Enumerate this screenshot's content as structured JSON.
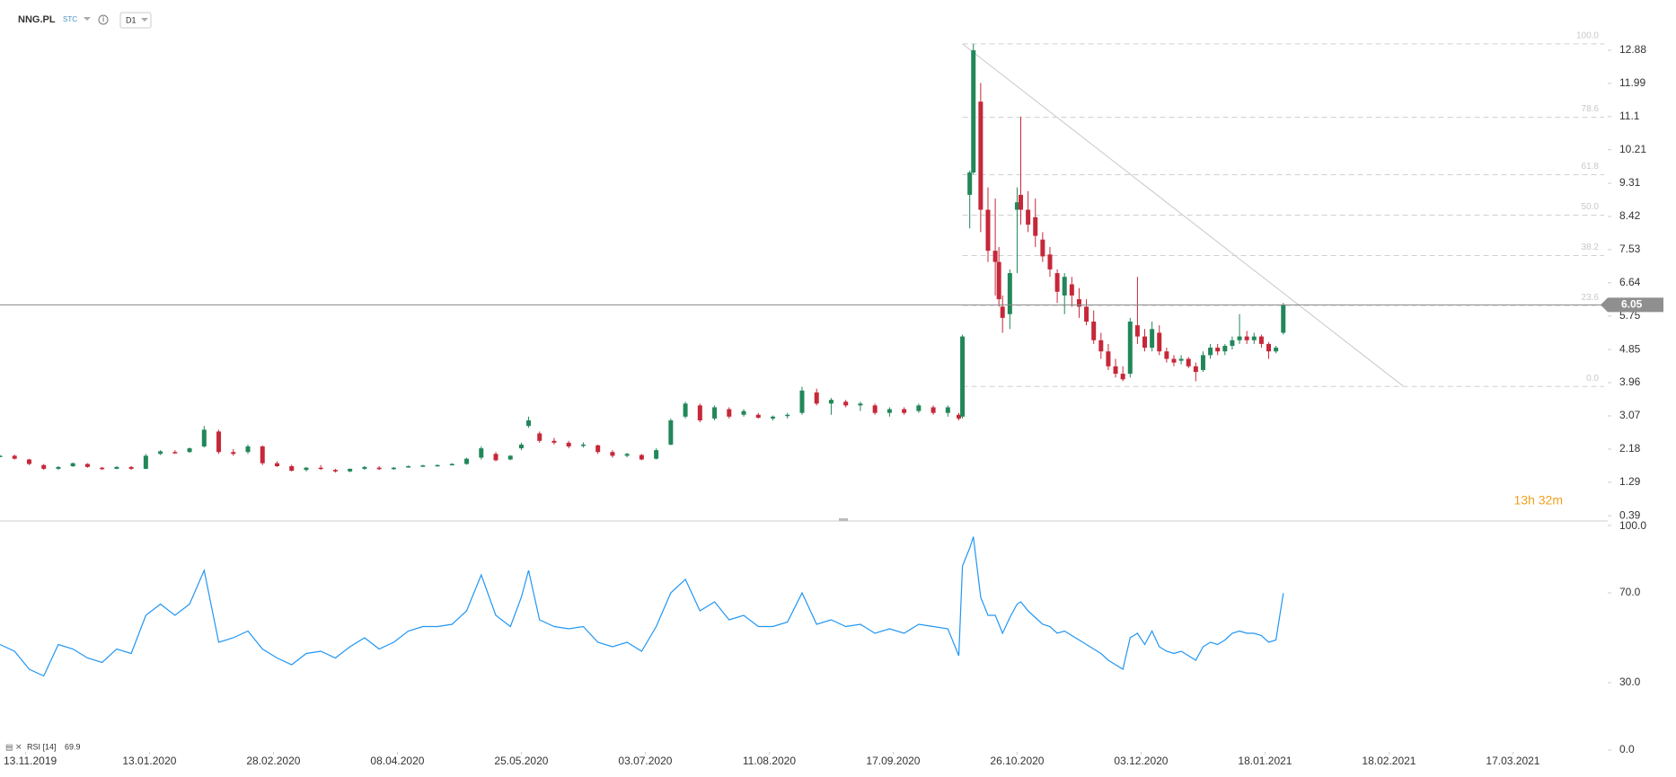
{
  "chart_data": {
    "type": "candlestick",
    "symbol": "NNG.PL",
    "exchange": "STC",
    "interval": "D1",
    "up_color": "#22875a",
    "down_color": "#c62839",
    "xlim": [
      0,
      441
    ],
    "ylim": [
      0.25,
      13.36
    ],
    "yticks": [
      12.88,
      11.99,
      11.1,
      10.21,
      9.31,
      8.42,
      7.53,
      6.64,
      5.75,
      4.85,
      3.96,
      3.07,
      2.18,
      1.29,
      0.39
    ],
    "xticks": [
      {
        "value": 7,
        "label": "13.11.2019"
      },
      {
        "value": 41,
        "label": "13.01.2020"
      },
      {
        "value": 75,
        "label": "28.02.2020"
      },
      {
        "value": 109,
        "label": "08.04.2020"
      },
      {
        "value": 143,
        "label": "25.05.2020"
      },
      {
        "value": 177,
        "label": "03.07.2020"
      },
      {
        "value": 211,
        "label": "11.08.2020"
      },
      {
        "value": 245,
        "label": "17.09.2020"
      },
      {
        "value": 279,
        "label": "26.10.2020"
      },
      {
        "value": 313,
        "label": "03.12.2020"
      },
      {
        "value": 347,
        "label": "18.01.2021"
      },
      {
        "value": 381,
        "label": "18.02.2021"
      },
      {
        "value": 415,
        "label": "17.03.2021"
      }
    ],
    "x": [
      0,
      4,
      8,
      12,
      16,
      20,
      24,
      28,
      32,
      36,
      40,
      44,
      48,
      52,
      56,
      60,
      64,
      68,
      72,
      76,
      80,
      84,
      88,
      92,
      96,
      100,
      104,
      108,
      112,
      116,
      120,
      124,
      128,
      132,
      136,
      140,
      143,
      145,
      148,
      152,
      156,
      160,
      164,
      168,
      172,
      176,
      180,
      184,
      188,
      192,
      196,
      200,
      204,
      208,
      212,
      216,
      220,
      224,
      228,
      232,
      236,
      240,
      244,
      248,
      252,
      256,
      260,
      263,
      264,
      266,
      267,
      269,
      271,
      273,
      274,
      275,
      277,
      279,
      280,
      282,
      284,
      286,
      288,
      290,
      292,
      294,
      296,
      298,
      300,
      302,
      304,
      306,
      308,
      310,
      312,
      314,
      316,
      318,
      320,
      322,
      324,
      326,
      328,
      330,
      332,
      334,
      336,
      338,
      340,
      342,
      344,
      346,
      348,
      350,
      352
    ],
    "open": [
      2.0,
      2.0,
      1.9,
      1.75,
      1.65,
      1.72,
      1.78,
      1.68,
      1.65,
      1.7,
      1.65,
      2.05,
      2.1,
      2.1,
      2.25,
      2.65,
      2.1,
      2.1,
      2.25,
      1.8,
      1.72,
      1.62,
      1.68,
      1.62,
      1.58,
      1.65,
      1.68,
      1.64,
      1.7,
      1.72,
      1.74,
      1.76,
      1.78,
      1.95,
      2.05,
      1.9,
      2.2,
      2.8,
      2.6,
      2.4,
      2.35,
      2.28,
      2.28,
      2.1,
      2.0,
      2.02,
      1.92,
      2.3,
      3.05,
      3.35,
      3.0,
      3.25,
      3.1,
      3.1,
      3.0,
      3.08,
      3.15,
      3.7,
      3.4,
      3.45,
      3.35,
      3.35,
      3.15,
      3.25,
      3.2,
      3.3,
      3.15,
      3.1,
      3.05,
      9.0,
      9.6,
      11.5,
      8.6,
      7.5,
      7.2,
      6.0,
      5.8,
      8.6,
      9.0,
      8.6,
      8.4,
      7.8,
      7.4,
      6.9,
      6.3,
      6.6,
      6.2,
      6.0,
      5.6,
      5.1,
      4.8,
      4.4,
      4.2,
      4.2,
      5.5,
      5.2,
      4.9,
      5.3,
      4.8,
      4.6,
      4.55,
      4.6,
      4.4,
      4.3,
      4.7,
      4.9,
      4.8,
      4.95,
      5.1,
      5.2,
      5.1,
      5.2,
      5.0,
      4.8,
      5.3
    ],
    "high": [
      2.02,
      2.03,
      1.92,
      1.78,
      1.72,
      1.82,
      1.8,
      1.7,
      1.72,
      1.72,
      2.05,
      2.15,
      2.15,
      2.22,
      2.8,
      2.7,
      2.18,
      2.3,
      2.28,
      1.85,
      1.76,
      1.7,
      1.75,
      1.65,
      1.66,
      1.72,
      1.72,
      1.7,
      1.74,
      1.76,
      1.77,
      1.8,
      1.95,
      2.25,
      2.1,
      2.02,
      2.35,
      3.05,
      2.65,
      2.48,
      2.4,
      2.36,
      2.3,
      2.15,
      2.08,
      2.05,
      2.2,
      3.0,
      3.45,
      3.4,
      3.35,
      3.3,
      3.25,
      3.15,
      3.08,
      3.15,
      3.85,
      3.8,
      3.55,
      3.5,
      3.45,
      3.4,
      3.3,
      3.3,
      3.4,
      3.35,
      3.35,
      3.15,
      5.25,
      9.65,
      13.05,
      12.0,
      9.2,
      8.9,
      7.6,
      6.3,
      7.0,
      9.2,
      11.1,
      9.1,
      8.9,
      8.0,
      7.6,
      7.0,
      6.9,
      6.8,
      6.5,
      6.2,
      5.9,
      5.3,
      5.0,
      4.6,
      4.4,
      5.7,
      6.8,
      5.4,
      5.6,
      5.5,
      4.9,
      4.7,
      4.7,
      4.65,
      4.5,
      4.8,
      5.0,
      5.0,
      5.0,
      5.2,
      5.8,
      5.35,
      5.3,
      5.25,
      5.05,
      4.95,
      6.1
    ],
    "low": [
      1.98,
      1.9,
      1.75,
      1.62,
      1.62,
      1.7,
      1.68,
      1.62,
      1.64,
      1.62,
      1.64,
      2.02,
      2.05,
      2.08,
      2.22,
      2.05,
      2.0,
      2.05,
      1.75,
      1.7,
      1.58,
      1.58,
      1.62,
      1.55,
      1.56,
      1.62,
      1.62,
      1.62,
      1.68,
      1.7,
      1.72,
      1.74,
      1.76,
      1.9,
      1.85,
      1.88,
      2.15,
      2.75,
      2.35,
      2.3,
      2.2,
      2.22,
      2.05,
      1.95,
      1.96,
      1.88,
      1.9,
      2.28,
      3.0,
      2.9,
      2.95,
      3.0,
      3.05,
      3.0,
      2.95,
      3.0,
      3.1,
      3.35,
      3.1,
      3.3,
      3.2,
      3.1,
      3.05,
      3.1,
      3.15,
      3.1,
      3.05,
      2.95,
      3.0,
      8.1,
      9.55,
      8.0,
      7.2,
      6.3,
      6.0,
      5.3,
      5.4,
      6.9,
      8.2,
      8.0,
      7.6,
      7.2,
      6.8,
      6.1,
      5.8,
      6.0,
      5.7,
      5.5,
      5.0,
      4.6,
      4.3,
      4.1,
      4.0,
      4.1,
      5.0,
      4.8,
      4.8,
      4.7,
      4.5,
      4.4,
      4.45,
      4.35,
      4.0,
      4.25,
      4.6,
      4.7,
      4.7,
      4.85,
      5.0,
      5.0,
      5.0,
      4.9,
      4.6,
      4.75,
      5.25
    ],
    "close": [
      2.0,
      1.92,
      1.78,
      1.65,
      1.7,
      1.8,
      1.7,
      1.64,
      1.7,
      1.65,
      2.0,
      2.12,
      2.08,
      2.2,
      2.7,
      2.1,
      2.05,
      2.25,
      1.8,
      1.72,
      1.6,
      1.68,
      1.65,
      1.58,
      1.65,
      1.7,
      1.64,
      1.68,
      1.72,
      1.74,
      1.75,
      1.78,
      1.92,
      2.2,
      1.88,
      2.0,
      2.3,
      2.95,
      2.4,
      2.35,
      2.25,
      2.3,
      2.1,
      2.0,
      2.05,
      1.9,
      2.15,
      2.95,
      3.4,
      2.95,
      3.3,
      3.05,
      3.2,
      3.02,
      3.05,
      3.1,
      3.75,
      3.4,
      3.5,
      3.35,
      3.4,
      3.15,
      3.25,
      3.15,
      3.35,
      3.15,
      3.3,
      3.0,
      5.2,
      9.6,
      12.88,
      8.6,
      7.5,
      7.2,
      6.2,
      5.7,
      6.9,
      8.8,
      8.6,
      8.2,
      7.9,
      7.35,
      7.0,
      6.4,
      6.8,
      6.3,
      6.0,
      5.6,
      5.1,
      4.8,
      4.4,
      4.2,
      4.05,
      5.6,
      5.2,
      4.9,
      5.4,
      4.8,
      4.6,
      4.5,
      4.6,
      4.4,
      4.25,
      4.7,
      4.9,
      4.8,
      4.95,
      5.1,
      5.2,
      5.1,
      5.2,
      5.0,
      4.8,
      4.9,
      6.05
    ],
    "last_price": 6.05,
    "countdown": "13h 32m",
    "fibonacci": {
      "high": 13.05,
      "low": 3.86,
      "start_x": 264,
      "end_x": 385,
      "levels": [
        {
          "value": 100,
          "label": "100.0"
        },
        {
          "value": 78.6,
          "label": "78.6"
        },
        {
          "value": 61.8,
          "label": "61.8"
        },
        {
          "value": 50,
          "label": "50.0"
        },
        {
          "value": 38.2,
          "label": "38.2"
        },
        {
          "value": 23.6,
          "label": "23.6"
        },
        {
          "value": 0,
          "label": "0.0"
        }
      ]
    },
    "rsi": {
      "name": "RSI [14]",
      "color": "#2196f3",
      "ylim": [
        0,
        100
      ],
      "yticks": [
        {
          "value": 100,
          "label": "100.0"
        },
        {
          "value": 70,
          "label": "70.0"
        },
        {
          "value": 30,
          "label": "30.0"
        },
        {
          "value": 0,
          "label": "0.0"
        }
      ],
      "values": [
        47,
        44,
        36,
        33,
        47,
        45,
        41,
        39,
        45,
        43,
        60,
        65,
        60,
        65,
        80,
        48,
        50,
        53,
        45,
        41,
        38,
        43,
        44,
        41,
        46,
        50,
        45,
        48,
        53,
        55,
        55,
        56,
        62,
        78,
        60,
        55,
        68,
        80,
        58,
        55,
        54,
        55,
        48,
        46,
        48,
        44,
        55,
        70,
        76,
        62,
        66,
        58,
        60,
        55,
        55,
        57,
        70,
        56,
        58,
        55,
        56,
        52,
        54,
        52,
        56,
        55,
        54,
        42,
        82,
        90,
        95,
        68,
        60,
        60,
        56,
        52,
        59,
        65,
        66,
        62,
        59,
        56,
        55,
        52,
        53,
        51,
        49,
        47,
        45,
        43,
        40,
        38,
        36,
        50,
        52,
        47,
        53,
        46,
        44,
        43,
        44,
        42,
        40,
        46,
        48,
        47,
        49,
        52,
        53,
        52,
        52,
        51,
        48,
        49,
        69.9
      ]
    }
  }
}
